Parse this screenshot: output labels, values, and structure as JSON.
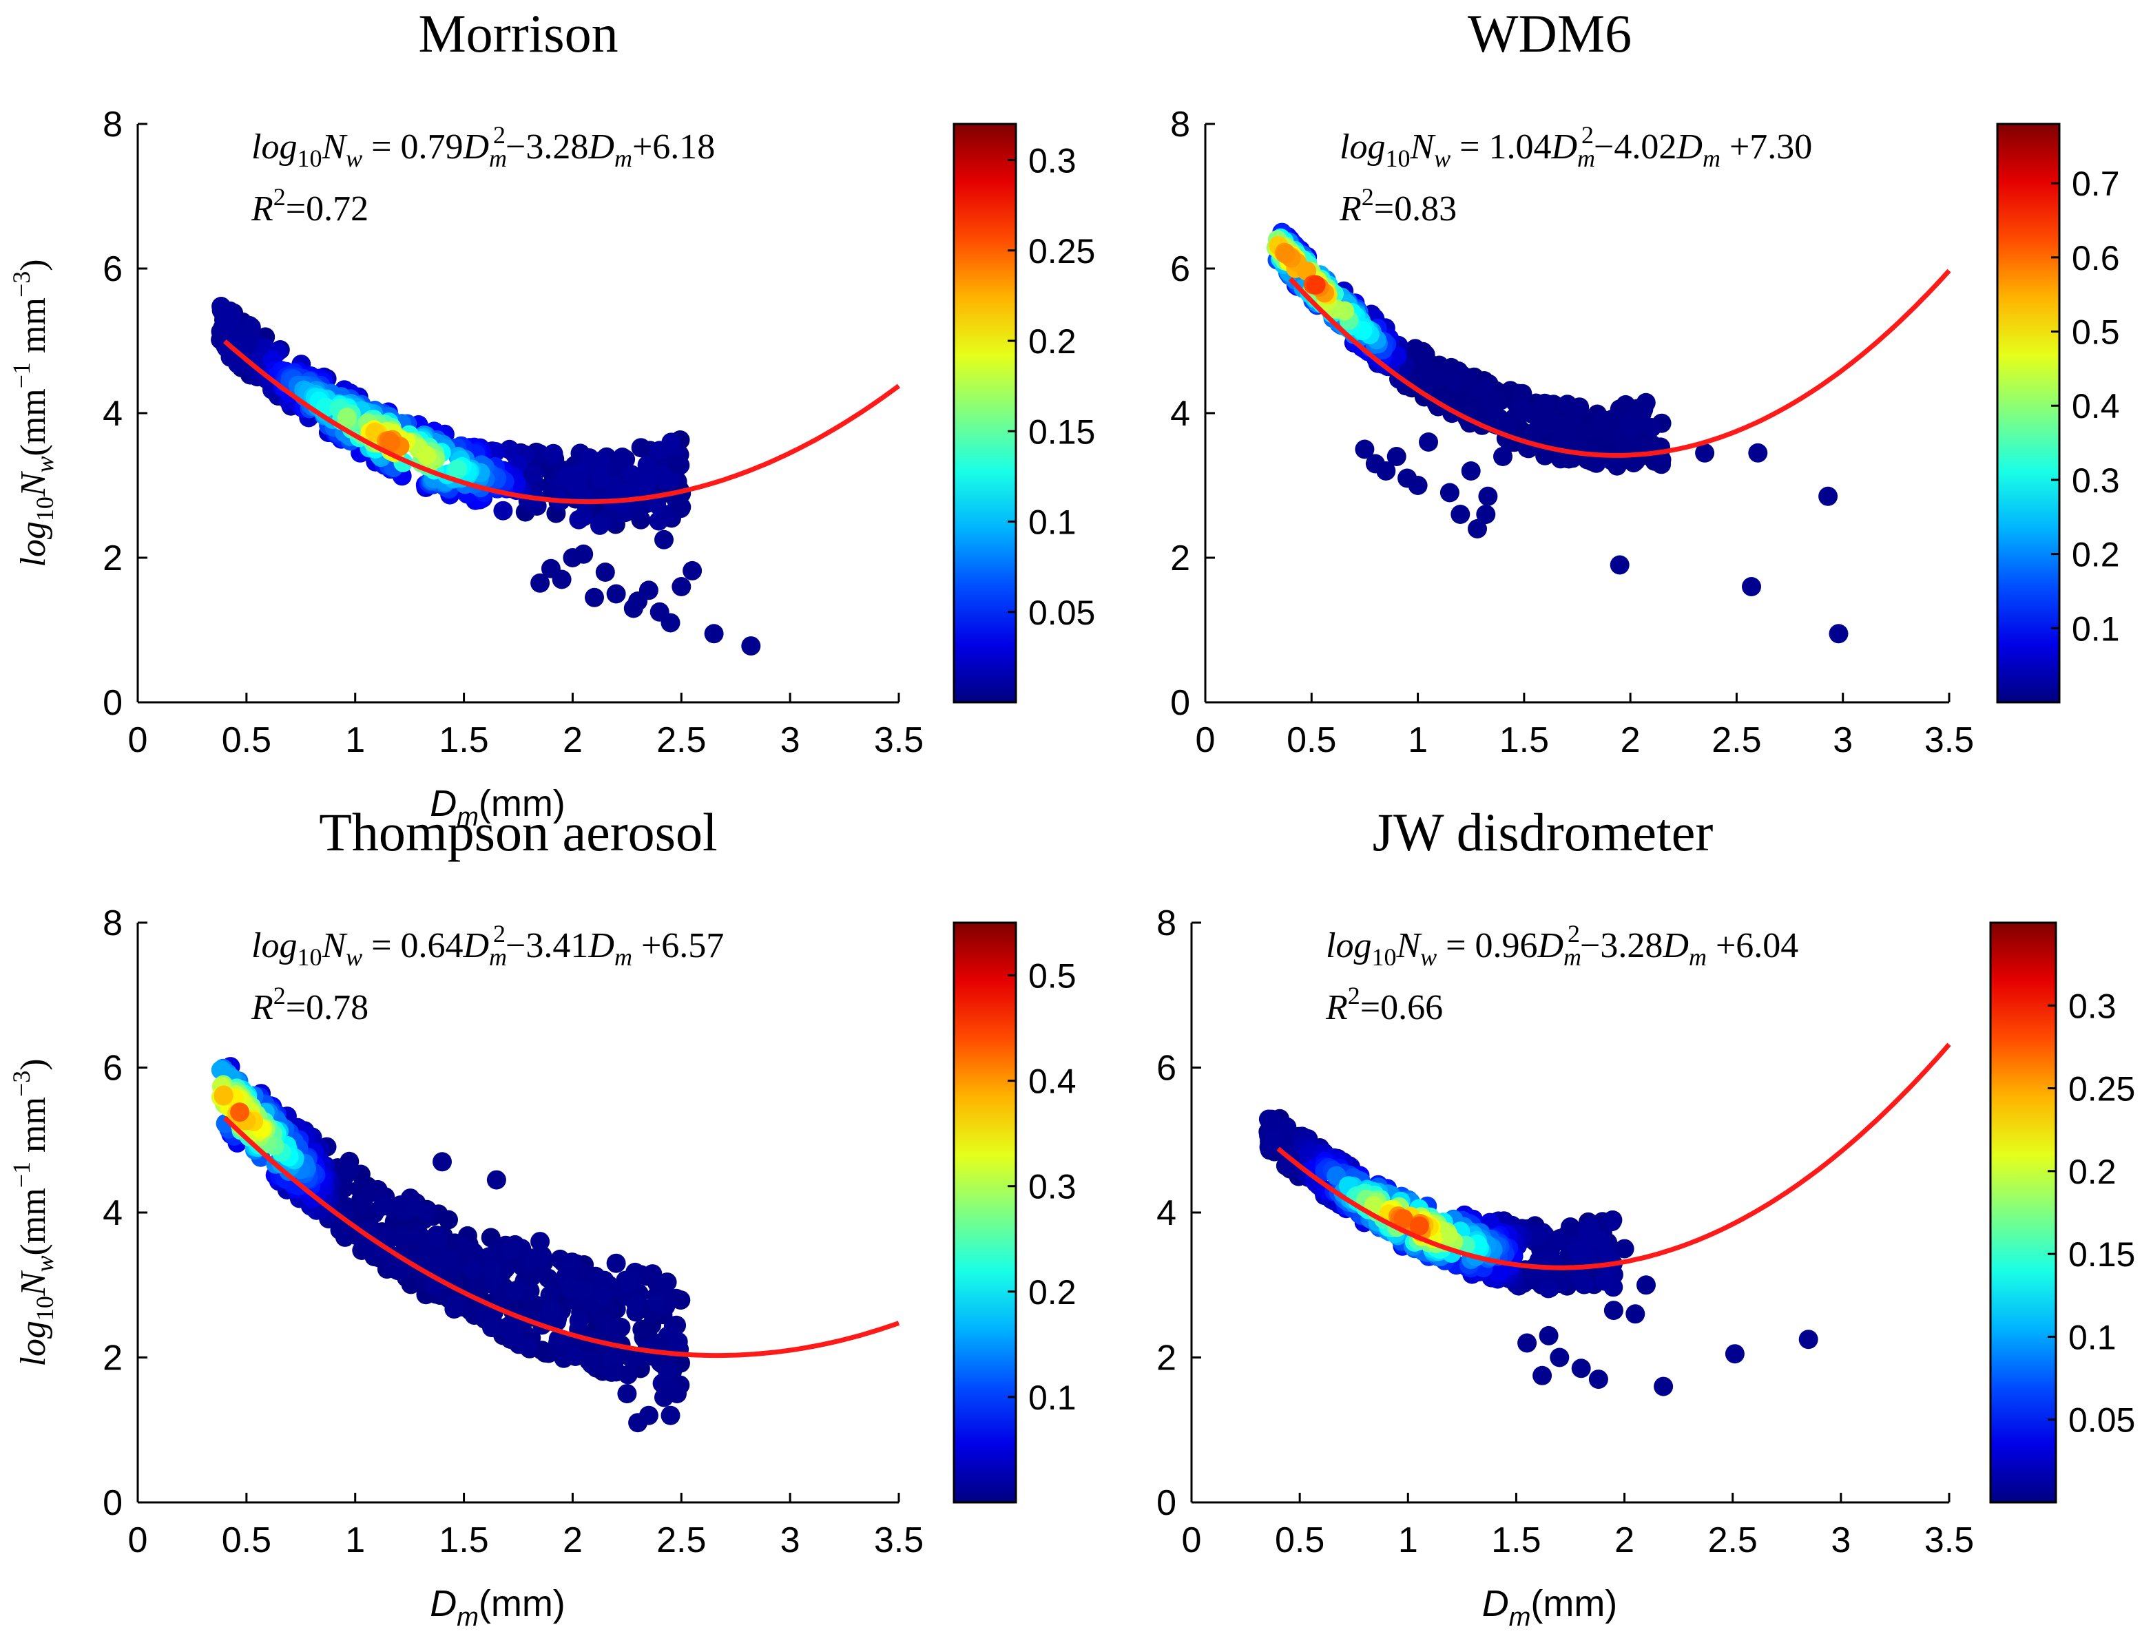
{
  "figure": {
    "colormap": "jet",
    "curve_color": "#ff1a1a",
    "point_color": "#00008f",
    "axis_color": "#000000"
  },
  "chart_data": [
    {
      "type": "scatter",
      "title": "Morrison",
      "xlabel": "D_m(mm)",
      "ylabel": "log10 Nw (mm^-1 mm^-3)",
      "xlim": [
        0,
        3.5
      ],
      "ylim": [
        0,
        8
      ],
      "xticks": [
        0,
        0.5,
        1,
        1.5,
        2,
        2.5,
        3,
        3.5
      ],
      "yticks": [
        0,
        2,
        4,
        6,
        8
      ],
      "xticklabels": [
        "0",
        "0.5",
        "1",
        "1.5",
        "2",
        "2.5",
        "3",
        "3.5"
      ],
      "yticklabels": [
        "0",
        "2",
        "4",
        "6",
        "8"
      ],
      "fit": {
        "a": 0.79,
        "b": -3.28,
        "c": 6.18,
        "x_range": [
          0.4,
          3.5
        ]
      },
      "equation": {
        "lhs_base": "log",
        "lhs_sub": "10",
        "lhs_var": "N",
        "lhs_var_sub": "w",
        "rhs": "= 0.79D_m^2−3.28D_m+6.18"
      },
      "r2": {
        "label": "R",
        "sup": "2",
        "value": "=0.72"
      },
      "colorbar": {
        "range": [
          0,
          0.32
        ],
        "ticks": [
          0.05,
          0.1,
          0.15,
          0.2,
          0.25,
          0.3
        ],
        "labels": [
          "0.05",
          "0.1",
          "0.15",
          "0.2",
          "0.25",
          "0.3"
        ]
      },
      "point_cloud": {
        "x_range": [
          0.38,
          2.5
        ],
        "spread": 0.55,
        "upper_offset": 0.35,
        "n": 520,
        "hot_x": [
          0.9,
          1.45
        ],
        "hot_max": 0.25,
        "seed": 11
      },
      "outliers": [
        [
          2.65,
          0.95
        ],
        [
          2.82,
          0.78
        ],
        [
          2.45,
          1.1
        ],
        [
          2.4,
          1.25
        ],
        [
          2.3,
          1.4
        ],
        [
          2.2,
          1.5
        ],
        [
          2.55,
          1.82
        ],
        [
          2.5,
          1.6
        ],
        [
          2.1,
          1.45
        ],
        [
          1.95,
          1.7
        ],
        [
          2.0,
          2.0
        ],
        [
          2.15,
          1.8
        ],
        [
          1.85,
          1.65
        ],
        [
          2.35,
          1.55
        ],
        [
          2.28,
          1.3
        ],
        [
          1.9,
          1.85
        ],
        [
          2.05,
          2.05
        ],
        [
          2.42,
          2.25
        ],
        [
          2.5,
          2.7
        ],
        [
          2.48,
          3.3
        ]
      ]
    },
    {
      "type": "scatter",
      "title": "WDM6",
      "xlabel": "",
      "ylabel": "",
      "xlim": [
        0,
        3.5
      ],
      "ylim": [
        0,
        8
      ],
      "xticks": [
        0,
        0.5,
        1,
        1.5,
        2,
        2.5,
        3,
        3.5
      ],
      "yticks": [
        0,
        2,
        4,
        6,
        8
      ],
      "xticklabels": [
        "0",
        "0.5",
        "1",
        "1.5",
        "2",
        "2.5",
        "3",
        "3.5"
      ],
      "yticklabels": [
        "0",
        "2",
        "4",
        "6",
        "8"
      ],
      "fit": {
        "a": 1.04,
        "b": -4.02,
        "c": 7.3,
        "x_range": [
          0.4,
          3.5
        ]
      },
      "equation": {
        "lhs_base": "log",
        "lhs_sub": "10",
        "lhs_var": "N",
        "lhs_var_sub": "w",
        "rhs": "= 1.04D_m^2−4.02D_m +7.30"
      },
      "r2": {
        "label": "R",
        "sup": "2",
        "value": "=0.83"
      },
      "colorbar": {
        "range": [
          0,
          0.78
        ],
        "ticks": [
          0.1,
          0.2,
          0.3,
          0.4,
          0.5,
          0.6,
          0.7
        ],
        "labels": [
          "0.1",
          "0.2",
          "0.3",
          "0.4",
          "0.5",
          "0.6",
          "0.7"
        ]
      },
      "point_cloud": {
        "x_range": [
          0.33,
          2.15
        ],
        "spread": 0.45,
        "upper_offset": 0.55,
        "n": 420,
        "hot_x": [
          0.35,
          0.6
        ],
        "hot_max": 0.72,
        "seed": 23
      },
      "outliers": [
        [
          0.75,
          3.5
        ],
        [
          0.8,
          3.3
        ],
        [
          0.85,
          3.2
        ],
        [
          0.95,
          3.1
        ],
        [
          0.9,
          3.4
        ],
        [
          1.0,
          3.0
        ],
        [
          1.05,
          3.6
        ],
        [
          1.15,
          2.9
        ],
        [
          1.2,
          2.6
        ],
        [
          1.28,
          2.4
        ],
        [
          1.32,
          2.6
        ],
        [
          1.33,
          2.85
        ],
        [
          1.4,
          3.4
        ],
        [
          1.25,
          3.2
        ],
        [
          1.95,
          1.9
        ],
        [
          2.35,
          3.45
        ],
        [
          2.6,
          3.45
        ],
        [
          2.57,
          1.6
        ],
        [
          2.93,
          2.85
        ],
        [
          2.98,
          0.95
        ],
        [
          2.1,
          3.8
        ],
        [
          2.12,
          3.45
        ],
        [
          2.0,
          3.85
        ]
      ]
    },
    {
      "type": "scatter",
      "title": "Thompson aerosol",
      "xlabel": "D_m(mm)",
      "ylabel": "log10 Nw (mm^-1 mm^-3)",
      "xlim": [
        0,
        3.5
      ],
      "ylim": [
        0,
        8
      ],
      "xticks": [
        0,
        0.5,
        1,
        1.5,
        2,
        2.5,
        3,
        3.5
      ],
      "yticks": [
        0,
        2,
        4,
        6,
        8
      ],
      "xticklabels": [
        "0",
        "0.5",
        "1",
        "1.5",
        "2",
        "2.5",
        "3",
        "3.5"
      ],
      "yticklabels": [
        "0",
        "2",
        "4",
        "6",
        "8"
      ],
      "fit": {
        "a": 0.64,
        "b": -3.41,
        "c": 6.57,
        "x_range": [
          0.4,
          3.5
        ]
      },
      "equation": {
        "lhs_base": "log",
        "lhs_sub": "10",
        "lhs_var": "N",
        "lhs_var_sub": "w",
        "rhs": "= 0.64D_m^2−3.41D_m +6.57"
      },
      "r2": {
        "label": "R",
        "sup": "2",
        "value": "=0.78"
      },
      "colorbar": {
        "range": [
          0,
          0.55
        ],
        "ticks": [
          0.1,
          0.2,
          0.3,
          0.4,
          0.5
        ],
        "labels": [
          "0.1",
          "0.2",
          "0.3",
          "0.4",
          "0.5"
        ]
      },
      "point_cloud": {
        "x_range": [
          0.38,
          2.5
        ],
        "spread": 0.8,
        "upper_offset": 0.6,
        "n": 620,
        "hot_x": [
          0.38,
          0.55
        ],
        "hot_max": 0.45,
        "seed": 37
      },
      "outliers": [
        [
          2.3,
          1.1
        ],
        [
          2.35,
          1.2
        ],
        [
          2.45,
          1.2
        ],
        [
          2.42,
          1.45
        ],
        [
          2.48,
          1.5
        ],
        [
          2.25,
          1.5
        ],
        [
          2.2,
          1.8
        ],
        [
          2.4,
          2.2
        ],
        [
          2.15,
          2.45
        ],
        [
          2.2,
          3.3
        ],
        [
          1.65,
          4.45
        ],
        [
          1.4,
          4.7
        ],
        [
          1.85,
          3.6
        ],
        [
          2.3,
          2.0
        ]
      ]
    },
    {
      "type": "scatter",
      "title": "JW disdrometer",
      "xlabel": "D_m(mm)",
      "ylabel": "",
      "xlim": [
        0,
        3.5
      ],
      "ylim": [
        0,
        8
      ],
      "xticks": [
        0,
        0.5,
        1,
        1.5,
        2,
        2.5,
        3,
        3.5
      ],
      "yticks": [
        0,
        2,
        4,
        6,
        8
      ],
      "xticklabels": [
        "0",
        "0.5",
        "1",
        "1.5",
        "2",
        "2.5",
        "3",
        "3.5"
      ],
      "yticklabels": [
        "0",
        "2",
        "4",
        "6",
        "8"
      ],
      "fit": {
        "a": 0.96,
        "b": -3.28,
        "c": 6.04,
        "x_range": [
          0.4,
          3.5
        ]
      },
      "equation": {
        "lhs_base": "log",
        "lhs_sub": "10",
        "lhs_var": "N",
        "lhs_var_sub": "w",
        "rhs": "= 0.96D_m^2−3.28D_m +6.04"
      },
      "r2": {
        "label": "R",
        "sup": "2",
        "value": "=0.66"
      },
      "colorbar": {
        "range": [
          0,
          0.35
        ],
        "ticks": [
          0.05,
          0.1,
          0.15,
          0.2,
          0.25,
          0.3
        ],
        "labels": [
          "0.05",
          "0.1",
          "0.15",
          "0.2",
          "0.25",
          "0.3"
        ]
      },
      "point_cloud": {
        "x_range": [
          0.35,
          1.95
        ],
        "spread": 0.5,
        "upper_offset": 0.3,
        "n": 420,
        "hot_x": [
          0.85,
          1.2
        ],
        "hot_max": 0.3,
        "seed": 53
      },
      "outliers": [
        [
          2.18,
          1.6
        ],
        [
          2.51,
          2.05
        ],
        [
          2.85,
          2.25
        ],
        [
          1.88,
          1.7
        ],
        [
          1.8,
          1.85
        ],
        [
          1.62,
          1.75
        ],
        [
          1.7,
          2.0
        ],
        [
          1.55,
          2.2
        ],
        [
          1.95,
          2.65
        ],
        [
          2.05,
          2.6
        ],
        [
          2.1,
          3.0
        ],
        [
          2.0,
          3.5
        ],
        [
          1.75,
          3.8
        ],
        [
          1.65,
          2.3
        ]
      ]
    }
  ]
}
